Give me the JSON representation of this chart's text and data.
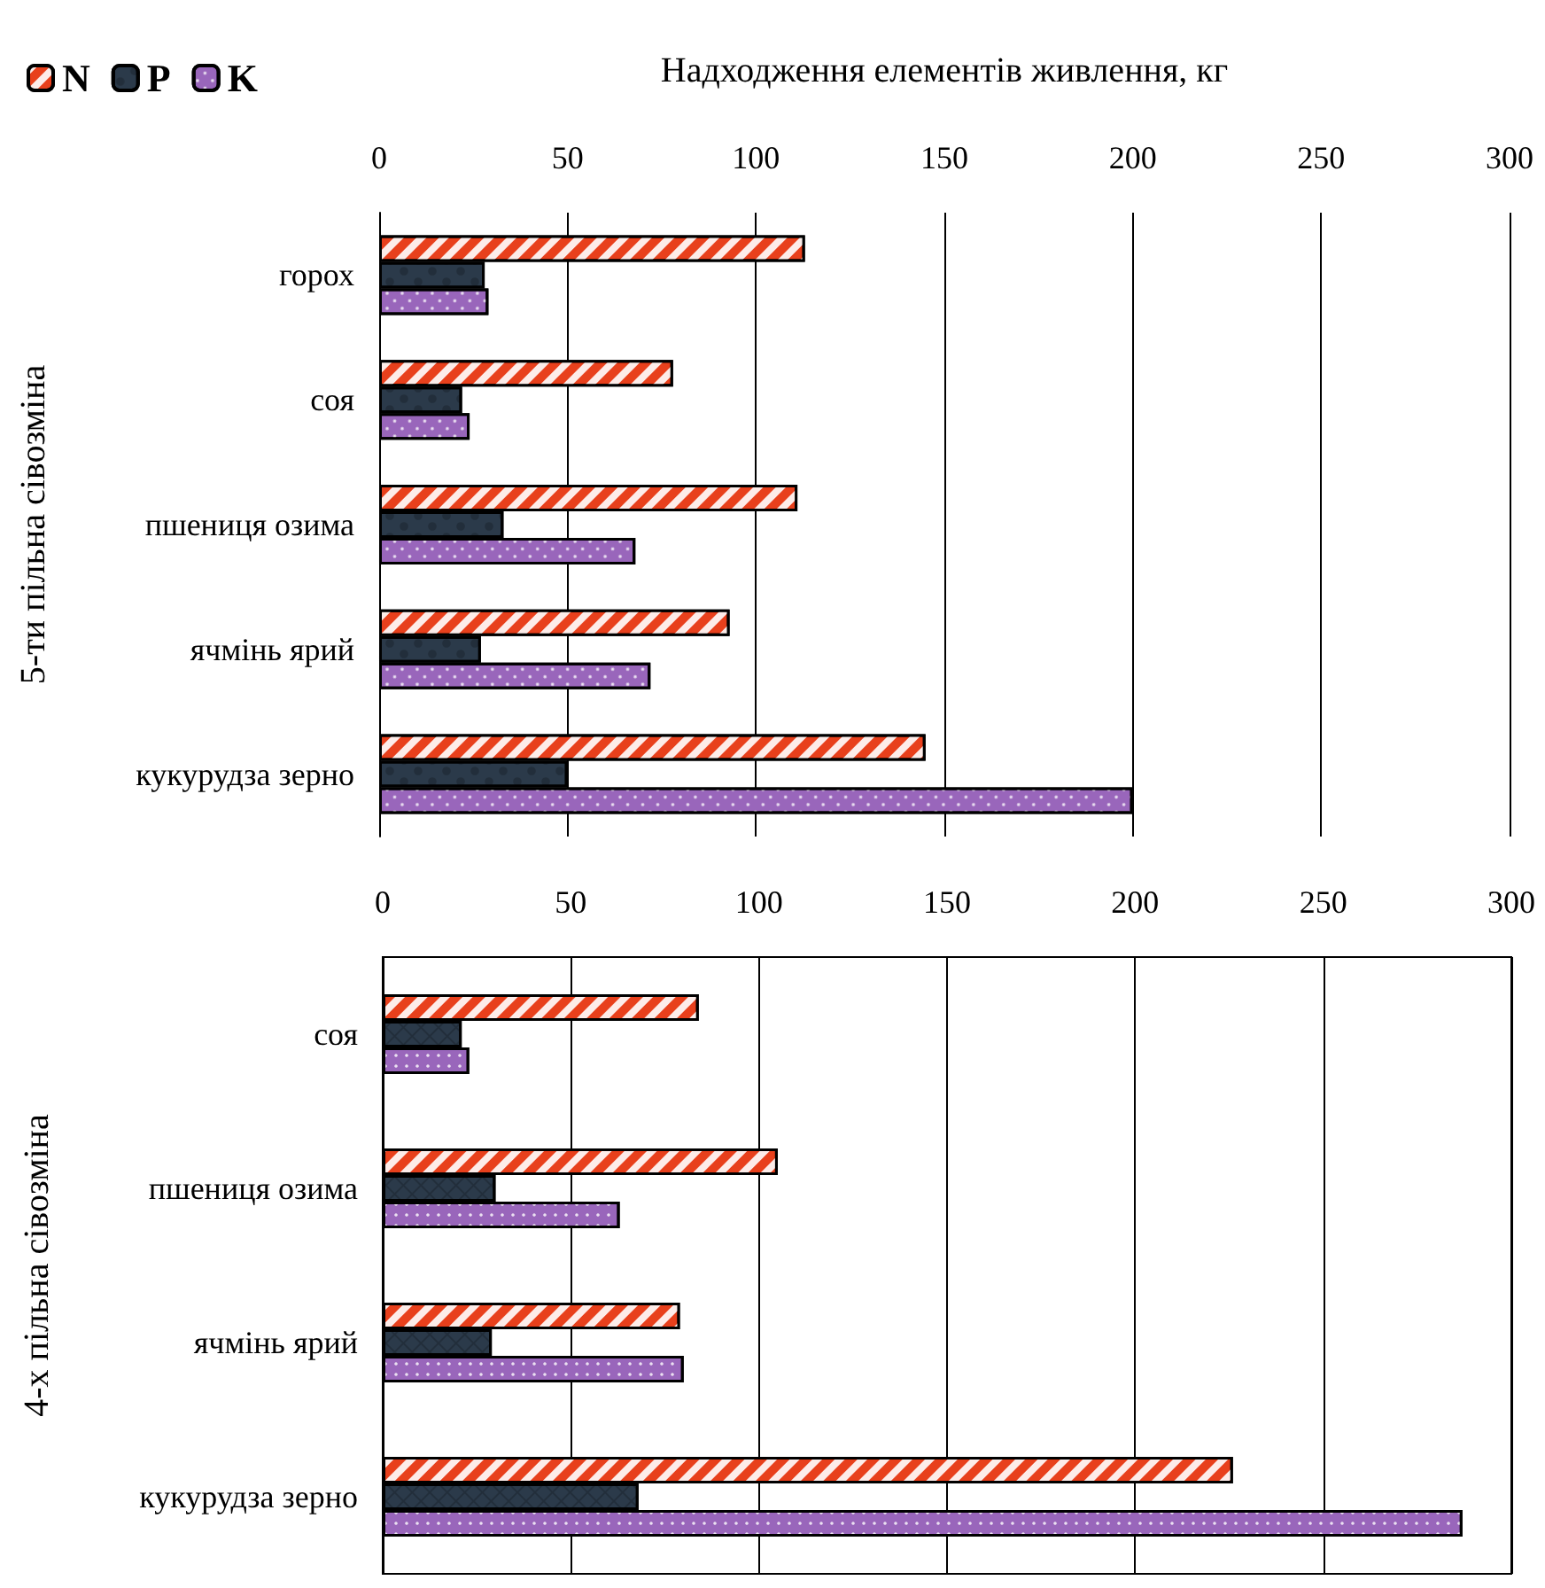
{
  "chart_data": [
    {
      "type": "bar",
      "orientation": "horizontal",
      "xlabel": "Надходження елементів живлення, кг",
      "ylabel": "5-ти пільна сівозміна",
      "categories": [
        "горох",
        "соя",
        "пшениця озима",
        "ячмінь ярий",
        "кукурудза зерно"
      ],
      "xlim": [
        0,
        300
      ],
      "xticks": [
        0,
        50,
        100,
        150,
        200,
        250,
        300
      ],
      "grid": "x",
      "legend": "top left",
      "series": [
        {
          "name": "N",
          "color": "#e8401c",
          "values": [
            113,
            78,
            111,
            93,
            145
          ]
        },
        {
          "name": "P",
          "color": "#2b3a4a",
          "values": [
            28,
            22,
            33,
            27,
            50
          ]
        },
        {
          "name": "K",
          "color": "#9966bb",
          "values": [
            29,
            24,
            68,
            72,
            200
          ]
        }
      ]
    },
    {
      "type": "bar",
      "orientation": "horizontal",
      "ylabel": "4-х пільна сівозміна",
      "categories": [
        "соя",
        "пшениця озима",
        "ячмінь ярий",
        "кукурудза зерно"
      ],
      "xlim": [
        0,
        300
      ],
      "xticks": [
        0,
        50,
        100,
        150,
        200,
        250,
        300
      ],
      "grid": "x",
      "legend": false,
      "series": [
        {
          "color": "#e8401c",
          "values": [
            84,
            105,
            79,
            226
          ]
        },
        {
          "color": "#2b3a4a",
          "values": [
            21,
            30,
            29,
            68
          ]
        },
        {
          "color": "#9966bb",
          "values": [
            23,
            63,
            80,
            287
          ]
        }
      ]
    }
  ]
}
